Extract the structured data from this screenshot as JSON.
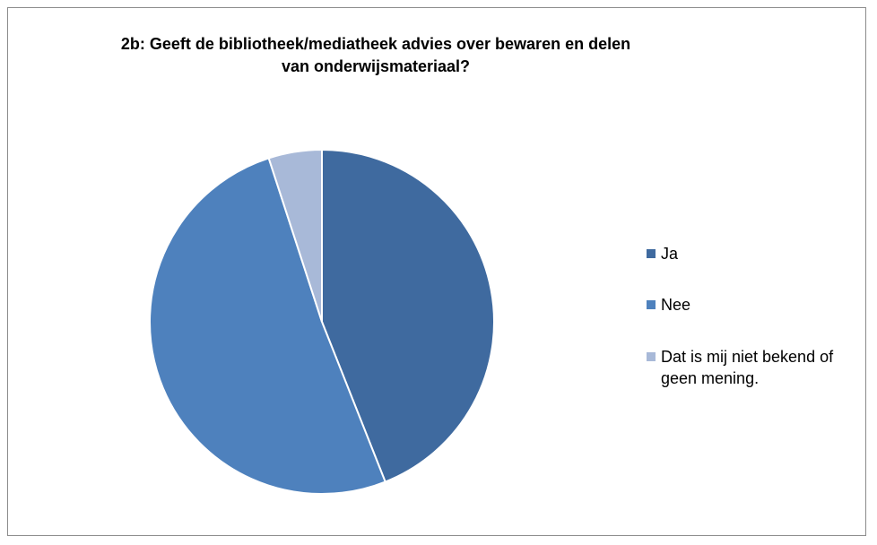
{
  "chart_data": {
    "type": "pie",
    "title": "2b: Geeft de bibliotheek/mediatheek advies over bewaren en delen\nvan onderwijsmateriaal?",
    "series": [
      {
        "values": [
          44,
          51,
          5
        ],
        "categories": [
          "Ja",
          "Nee",
          "Dat is mij niet bekend of geen mening."
        ]
      }
    ],
    "colors": [
      "#3f6a9f",
      "#4e81bd",
      "#a8b9d8"
    ],
    "legend": "right",
    "data_labels": false,
    "start_angle_deg": 0,
    "direction": "clockwise"
  }
}
